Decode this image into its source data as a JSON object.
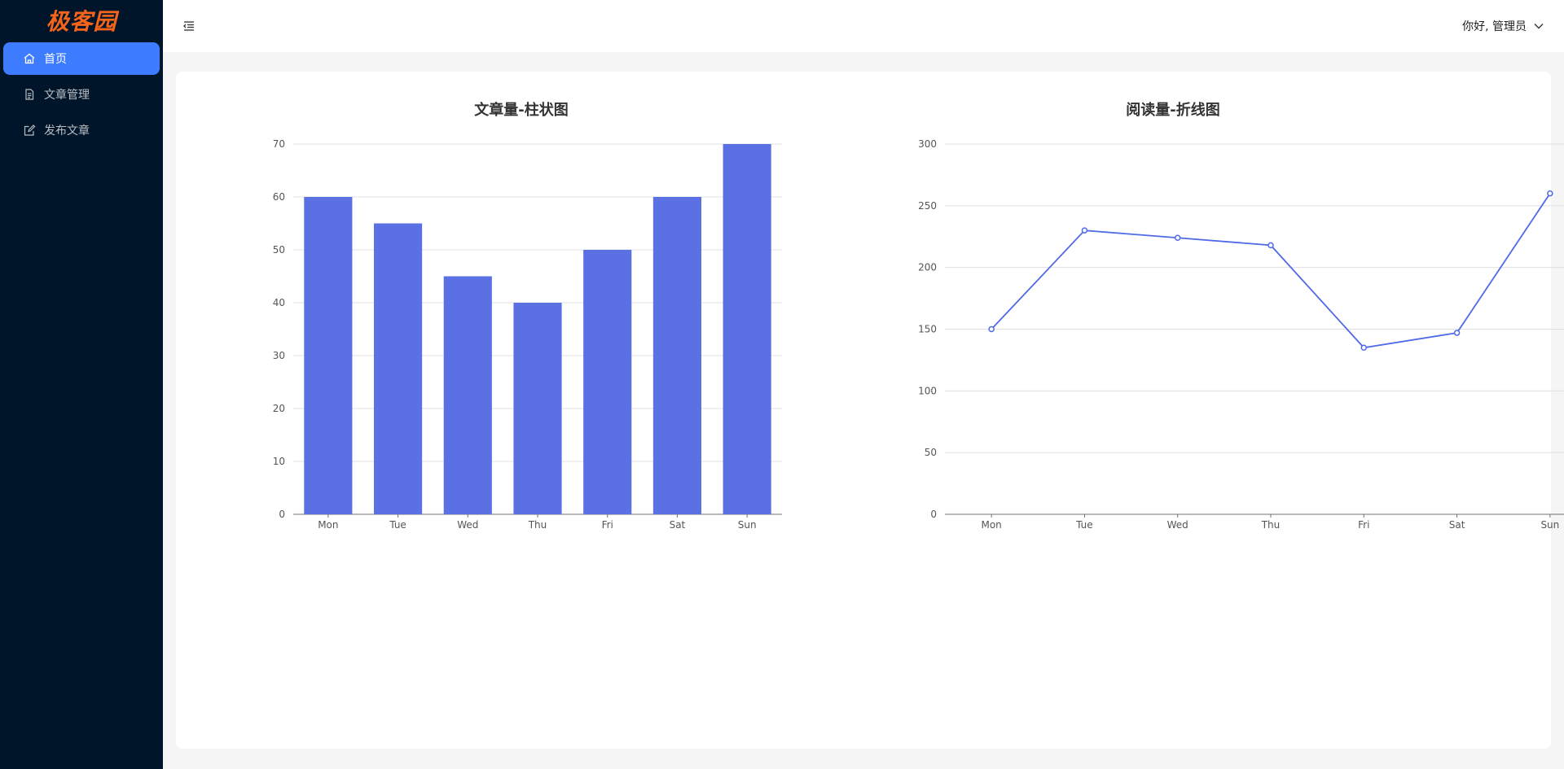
{
  "app": {
    "logo_text": "极客园"
  },
  "sidebar": {
    "items": [
      {
        "label": "首页",
        "icon": "home-icon",
        "active": true
      },
      {
        "label": "文章管理",
        "icon": "file-icon",
        "active": false
      },
      {
        "label": "发布文章",
        "icon": "edit-icon",
        "active": false
      }
    ]
  },
  "header": {
    "fold_icon": "menu-fold-icon",
    "user_greeting": "你好, 管理员",
    "user_menu_icon": "chevron-down-icon"
  },
  "colors": {
    "sidebar_bg": "#001529",
    "accent": "#3d7bff",
    "logo": "#f4641a",
    "bar": "#5b70e2",
    "line": "#4f6ae6"
  },
  "chart_data": [
    {
      "type": "bar",
      "title": "文章量-柱状图",
      "categories": [
        "Mon",
        "Tue",
        "Wed",
        "Thu",
        "Fri",
        "Sat",
        "Sun"
      ],
      "values": [
        60,
        55,
        45,
        40,
        50,
        60,
        70
      ],
      "ylim": [
        0,
        70
      ],
      "yticks": [
        0,
        10,
        20,
        30,
        40,
        50,
        60,
        70
      ],
      "xlabel": "",
      "ylabel": "",
      "grid": true
    },
    {
      "type": "line",
      "title": "阅读量-折线图",
      "categories": [
        "Mon",
        "Tue",
        "Wed",
        "Thu",
        "Fri",
        "Sat",
        "Sun"
      ],
      "values": [
        150,
        230,
        224,
        218,
        135,
        147,
        260
      ],
      "ylim": [
        0,
        300
      ],
      "yticks": [
        0,
        50,
        100,
        150,
        200,
        250,
        300
      ],
      "xlabel": "",
      "ylabel": "",
      "grid": true
    }
  ]
}
